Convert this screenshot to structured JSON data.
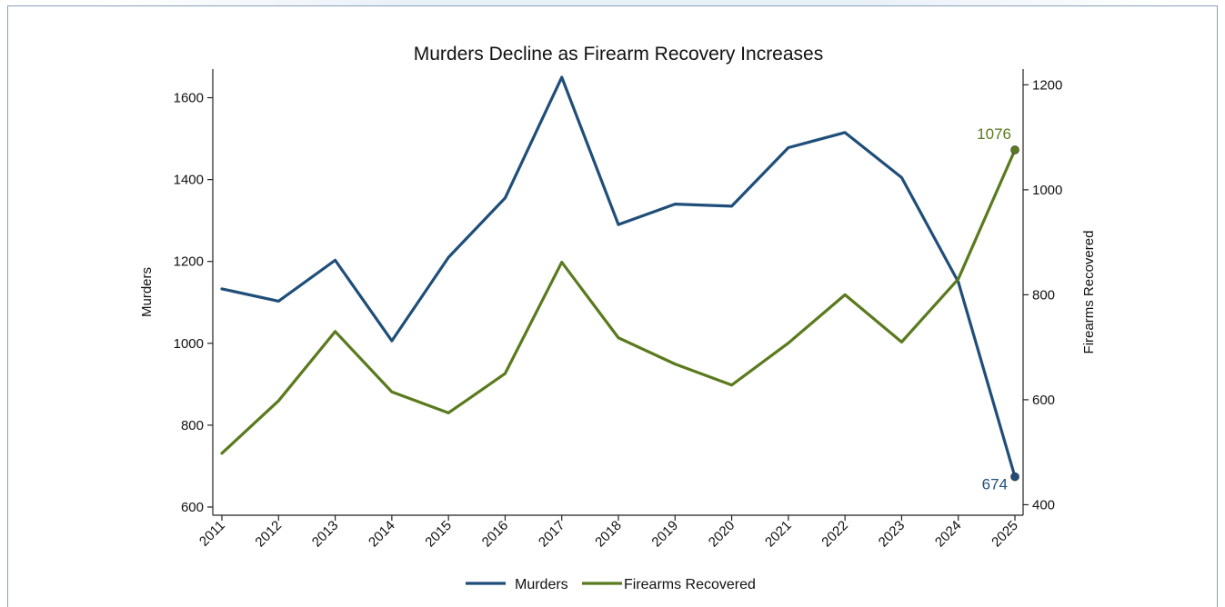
{
  "chart_data": {
    "type": "line",
    "title": "Murders Decline as Firearm Recovery Increases",
    "ylabel_left": "Murders",
    "ylabel_right": "Firearms Recovered",
    "categories": [
      "2011",
      "2012",
      "2013",
      "2014",
      "2015",
      "2016",
      "2017",
      "2018",
      "2019",
      "2020",
      "2021",
      "2022",
      "2023",
      "2024",
      "2025"
    ],
    "ylim_left": [
      580,
      1670
    ],
    "yticks_left": [
      600,
      800,
      1000,
      1200,
      1400,
      1600
    ],
    "ylim_right": [
      380,
      1230
    ],
    "yticks_right": [
      400,
      600,
      800,
      1000,
      1200
    ],
    "series": [
      {
        "name": "Murders",
        "axis": "left",
        "color": "#1f4e79",
        "values": [
          1133,
          1103,
          1203,
          1006,
          1210,
          1355,
          1650,
          1290,
          1340,
          1335,
          1478,
          1515,
          1405,
          1150,
          674
        ],
        "end_label": "674"
      },
      {
        "name": "Firearms Recovered",
        "axis": "right",
        "color": "#5a7a1e",
        "values": [
          498,
          598,
          730,
          615,
          575,
          650,
          862,
          718,
          668,
          628,
          708,
          800,
          710,
          830,
          1076
        ],
        "end_label": "1076"
      }
    ],
    "legend_position": "bottom",
    "grid": false
  }
}
